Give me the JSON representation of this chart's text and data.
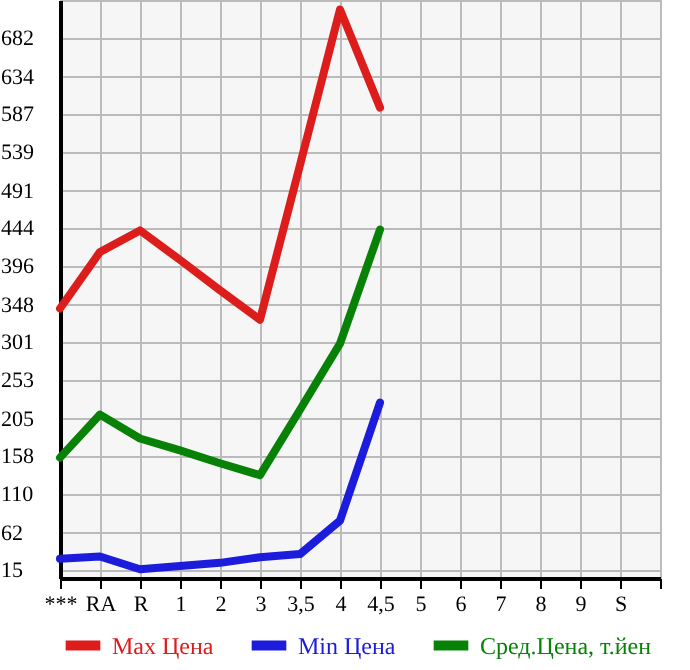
{
  "chart_data": {
    "type": "line",
    "categories": [
      "***",
      "RA",
      "R",
      "1",
      "2",
      "3",
      "3,5",
      "4",
      "4,5",
      "5",
      "6",
      "7",
      "8",
      "9",
      "S",
      null
    ],
    "series": [
      {
        "name": "Max Цена",
        "color": "#dd1c1c",
        "values": [
          343,
          414,
          441,
          404,
          366,
          329,
          523,
          718,
          595,
          null,
          null,
          null,
          null,
          null,
          null,
          null
        ]
      },
      {
        "name": "Min Цена",
        "color": "#1c1cdd",
        "values": [
          29,
          32,
          16,
          20,
          24,
          31,
          35,
          77,
          225,
          null,
          null,
          null,
          null,
          null,
          null,
          null
        ]
      },
      {
        "name": "Сред.Цена, т.йен",
        "color": "#078207",
        "values": [
          156,
          210,
          180,
          165,
          149,
          134,
          216,
          299,
          442,
          null,
          null,
          null,
          null,
          null,
          null,
          null
        ]
      }
    ],
    "ylim": [
      5,
      730
    ],
    "yticks": [
      15,
      62,
      110,
      158,
      205,
      253,
      301,
      348,
      396,
      444,
      491,
      539,
      587,
      634,
      682
    ],
    "grid": true,
    "legend": "bottom",
    "line_style": "solid",
    "marker": "none"
  }
}
